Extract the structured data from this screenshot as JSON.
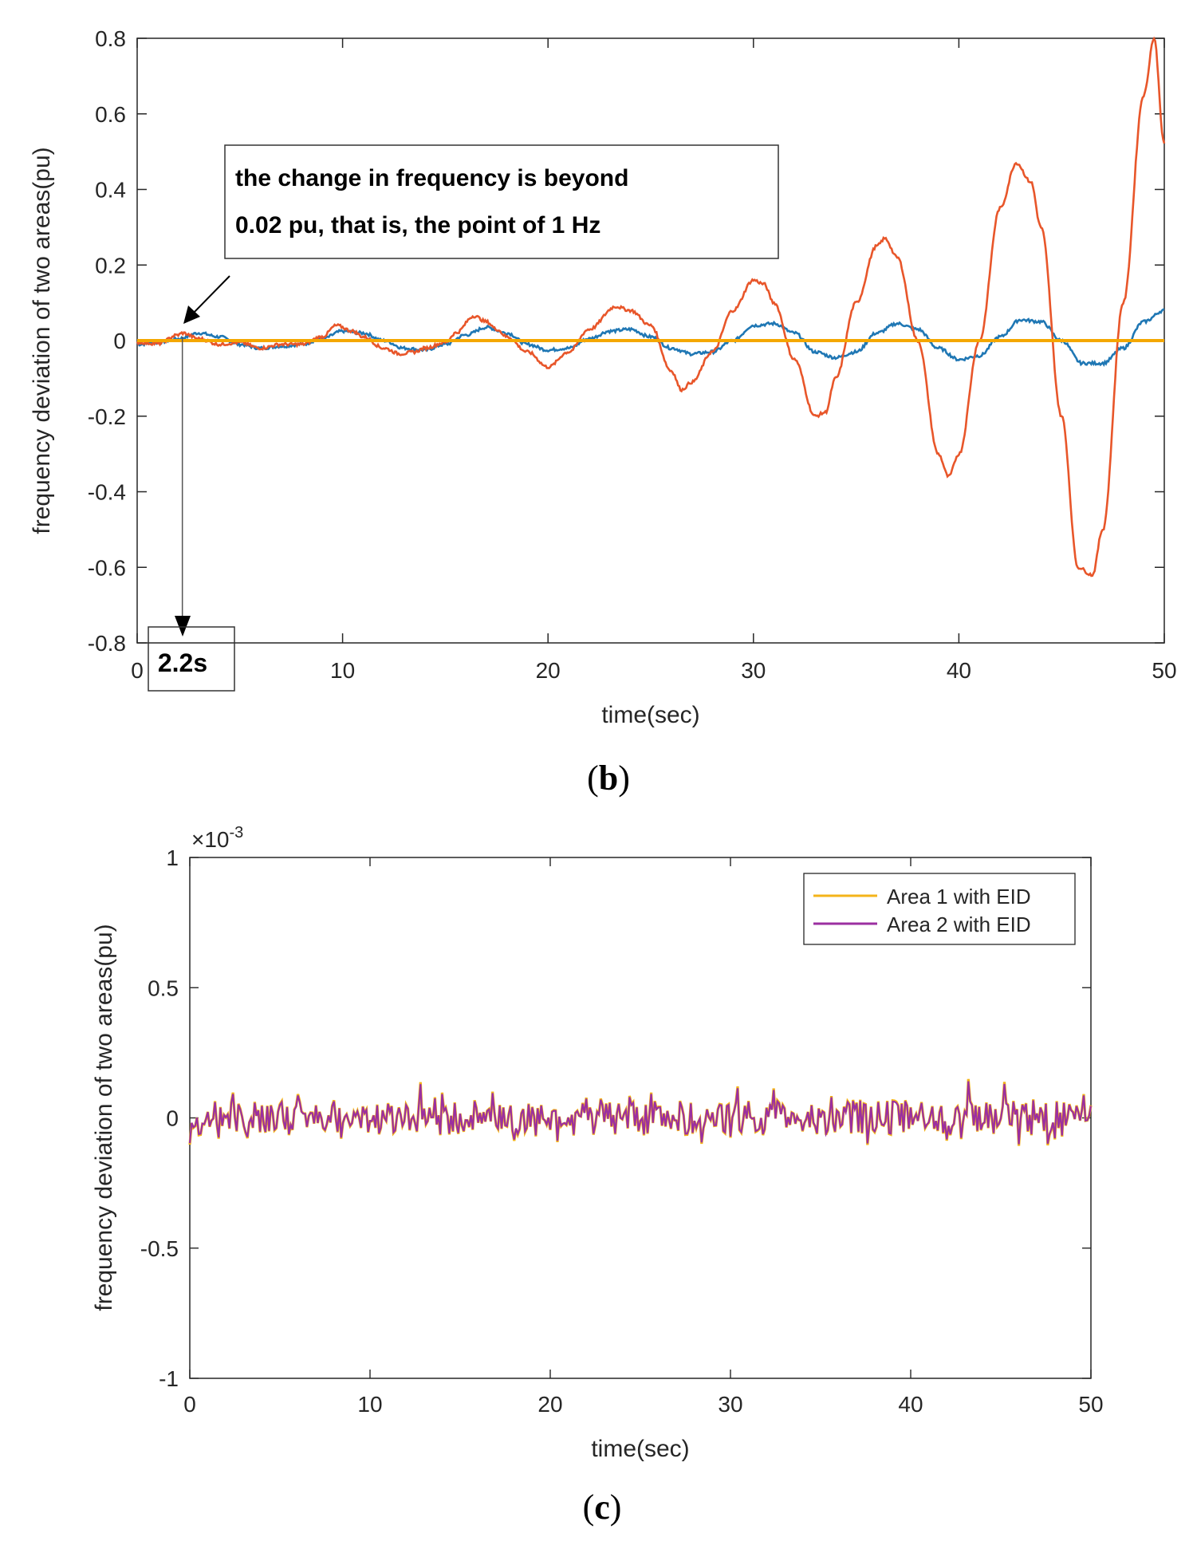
{
  "chart_data": [
    {
      "type": "line",
      "panel_label": "b",
      "xlabel": "time(sec)",
      "ylabel": "frequency deviation of two areas(pu)",
      "xlim": [
        0,
        50
      ],
      "ylim": [
        -0.8,
        0.8
      ],
      "x_ticks": [
        "0",
        "10",
        "20",
        "30",
        "40",
        "50"
      ],
      "y_ticks": [
        "0.8",
        "0.6",
        "0.4",
        "0.2",
        "0",
        "-0.2",
        "-0.4",
        "-0.6",
        "-0.8"
      ],
      "annotation": "the change in frequency is beyond 0.02 pu, that is, the point of 1 Hz",
      "annotation_lines": [
        "the change in frequency is beyond",
        "0.02 pu, that is, the point of 1 Hz"
      ],
      "marker_label": "2.2s",
      "marker_x": 2.2,
      "series": [
        {
          "name": "red-oscillation",
          "color": "#E8562A",
          "x": [
            0,
            1,
            2,
            2.2,
            3,
            4,
            5,
            6,
            7,
            8,
            9,
            9.7,
            10.5,
            11,
            12,
            12.8,
            13.5,
            14,
            15,
            15.5,
            16.4,
            17,
            17.5,
            18,
            19,
            20,
            21,
            22,
            23.3,
            24,
            25,
            26,
            26.5,
            27,
            28,
            29,
            30,
            30.5,
            31,
            32,
            33,
            33.5,
            34,
            35,
            36,
            36.4,
            37,
            38,
            39,
            39.5,
            40,
            41,
            42,
            42.8,
            43.5,
            44,
            45,
            45.8,
            46.5,
            47,
            48,
            49,
            49.5,
            50
          ],
          "y": [
            -0.005,
            -0.008,
            0.015,
            0.02,
            0.005,
            -0.01,
            -0.005,
            -0.02,
            -0.01,
            -0.01,
            0.01,
            0.04,
            0.025,
            0.01,
            -0.02,
            -0.035,
            -0.03,
            -0.02,
            -0.005,
            0.02,
            0.065,
            0.05,
            0.03,
            0.01,
            -0.03,
            -0.07,
            -0.03,
            0.03,
            0.09,
            0.08,
            0.04,
            -0.08,
            -0.13,
            -0.11,
            -0.03,
            0.08,
            0.16,
            0.15,
            0.1,
            -0.05,
            -0.2,
            -0.19,
            -0.1,
            0.1,
            0.25,
            0.27,
            0.22,
            0.0,
            -0.3,
            -0.36,
            -0.3,
            0.0,
            0.35,
            0.47,
            0.42,
            0.3,
            -0.2,
            -0.6,
            -0.62,
            -0.5,
            0.1,
            0.65,
            0.8,
            0.52
          ]
        },
        {
          "name": "blue-oscillation",
          "color": "#1F77B4",
          "x": [
            0,
            1,
            2,
            3,
            4,
            5,
            6,
            7,
            8,
            9,
            10,
            11,
            12,
            13,
            14,
            15,
            16,
            17,
            18,
            19,
            20,
            21,
            22,
            23,
            24,
            25,
            26,
            27,
            28,
            29,
            30,
            31,
            32,
            33,
            34,
            35,
            36,
            37,
            38,
            39,
            40,
            41,
            42,
            43,
            44,
            45,
            46,
            47,
            48,
            49,
            50
          ],
          "y": [
            -0.01,
            -0.005,
            0.005,
            0.02,
            0.01,
            -0.01,
            -0.02,
            -0.015,
            -0.01,
            0.005,
            0.025,
            0.02,
            0.0,
            -0.02,
            -0.025,
            -0.01,
            0.015,
            0.035,
            0.02,
            -0.01,
            -0.025,
            -0.02,
            0.005,
            0.025,
            0.03,
            0.01,
            -0.02,
            -0.035,
            -0.03,
            0.0,
            0.04,
            0.045,
            0.02,
            -0.03,
            -0.045,
            -0.03,
            0.02,
            0.045,
            0.03,
            -0.02,
            -0.05,
            -0.04,
            0.01,
            0.055,
            0.05,
            0.0,
            -0.06,
            -0.06,
            -0.02,
            0.05,
            0.08
          ]
        },
        {
          "name": "orange-baseline",
          "color": "#F4A700",
          "x": [
            0,
            50
          ],
          "y": [
            0.0,
            0.0
          ]
        }
      ]
    },
    {
      "type": "line",
      "panel_label": "c",
      "xlabel": "time(sec)",
      "ylabel": "frequency deviation of two areas(pu)",
      "scale_label": "×10",
      "scale_exponent": "-3",
      "xlim": [
        0,
        50
      ],
      "ylim": [
        -1,
        1
      ],
      "x_ticks": [
        "0",
        "10",
        "20",
        "30",
        "40",
        "50"
      ],
      "y_ticks": [
        "1",
        "0.5",
        "0",
        "-0.5",
        "-1"
      ],
      "legend_position": "top-right",
      "noise_amplitude_e3": 0.08,
      "series": [
        {
          "name": "Area 1 with EID",
          "color": "#F4B41A"
        },
        {
          "name": "Area 2 with EID",
          "color": "#9B2FA0"
        }
      ]
    }
  ]
}
